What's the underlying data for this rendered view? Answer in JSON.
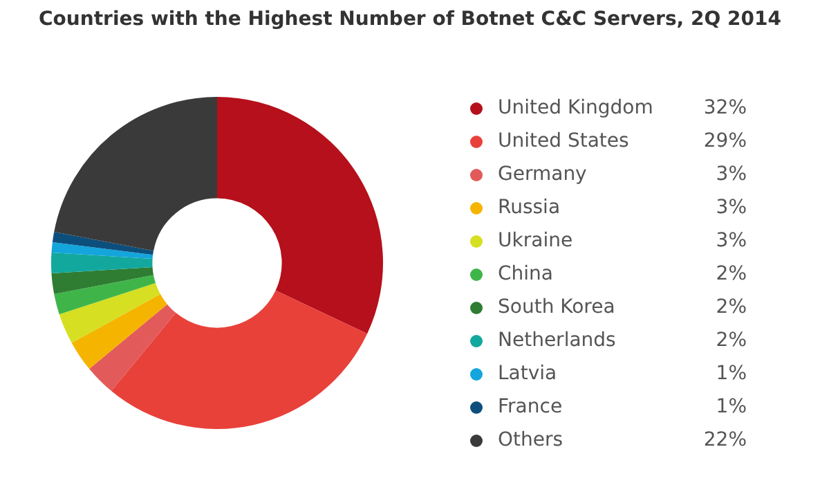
{
  "chart_data": {
    "type": "donut",
    "title": "Countries with the Highest Number of Botnet C&C Servers, 2Q 2014",
    "categories": [
      "United Kingdom",
      "United States",
      "Germany",
      "Russia",
      "Ukraine",
      "China",
      "South Korea",
      "Netherlands",
      "Latvia",
      "France",
      "Others"
    ],
    "values": [
      32,
      29,
      3,
      3,
      3,
      2,
      2,
      2,
      1,
      1,
      22
    ],
    "colors": [
      "#b5101b",
      "#e8413a",
      "#e35a5a",
      "#f5b400",
      "#d6df22",
      "#3fb549",
      "#2e7d32",
      "#12a89d",
      "#14a5dc",
      "#0d4f7c",
      "#3a3a3a"
    ],
    "value_labels": [
      "32%",
      "29%",
      "3%",
      "3%",
      "3%",
      "2%",
      "2%",
      "2%",
      "1%",
      "1%",
      "22%"
    ],
    "legend": "right"
  }
}
